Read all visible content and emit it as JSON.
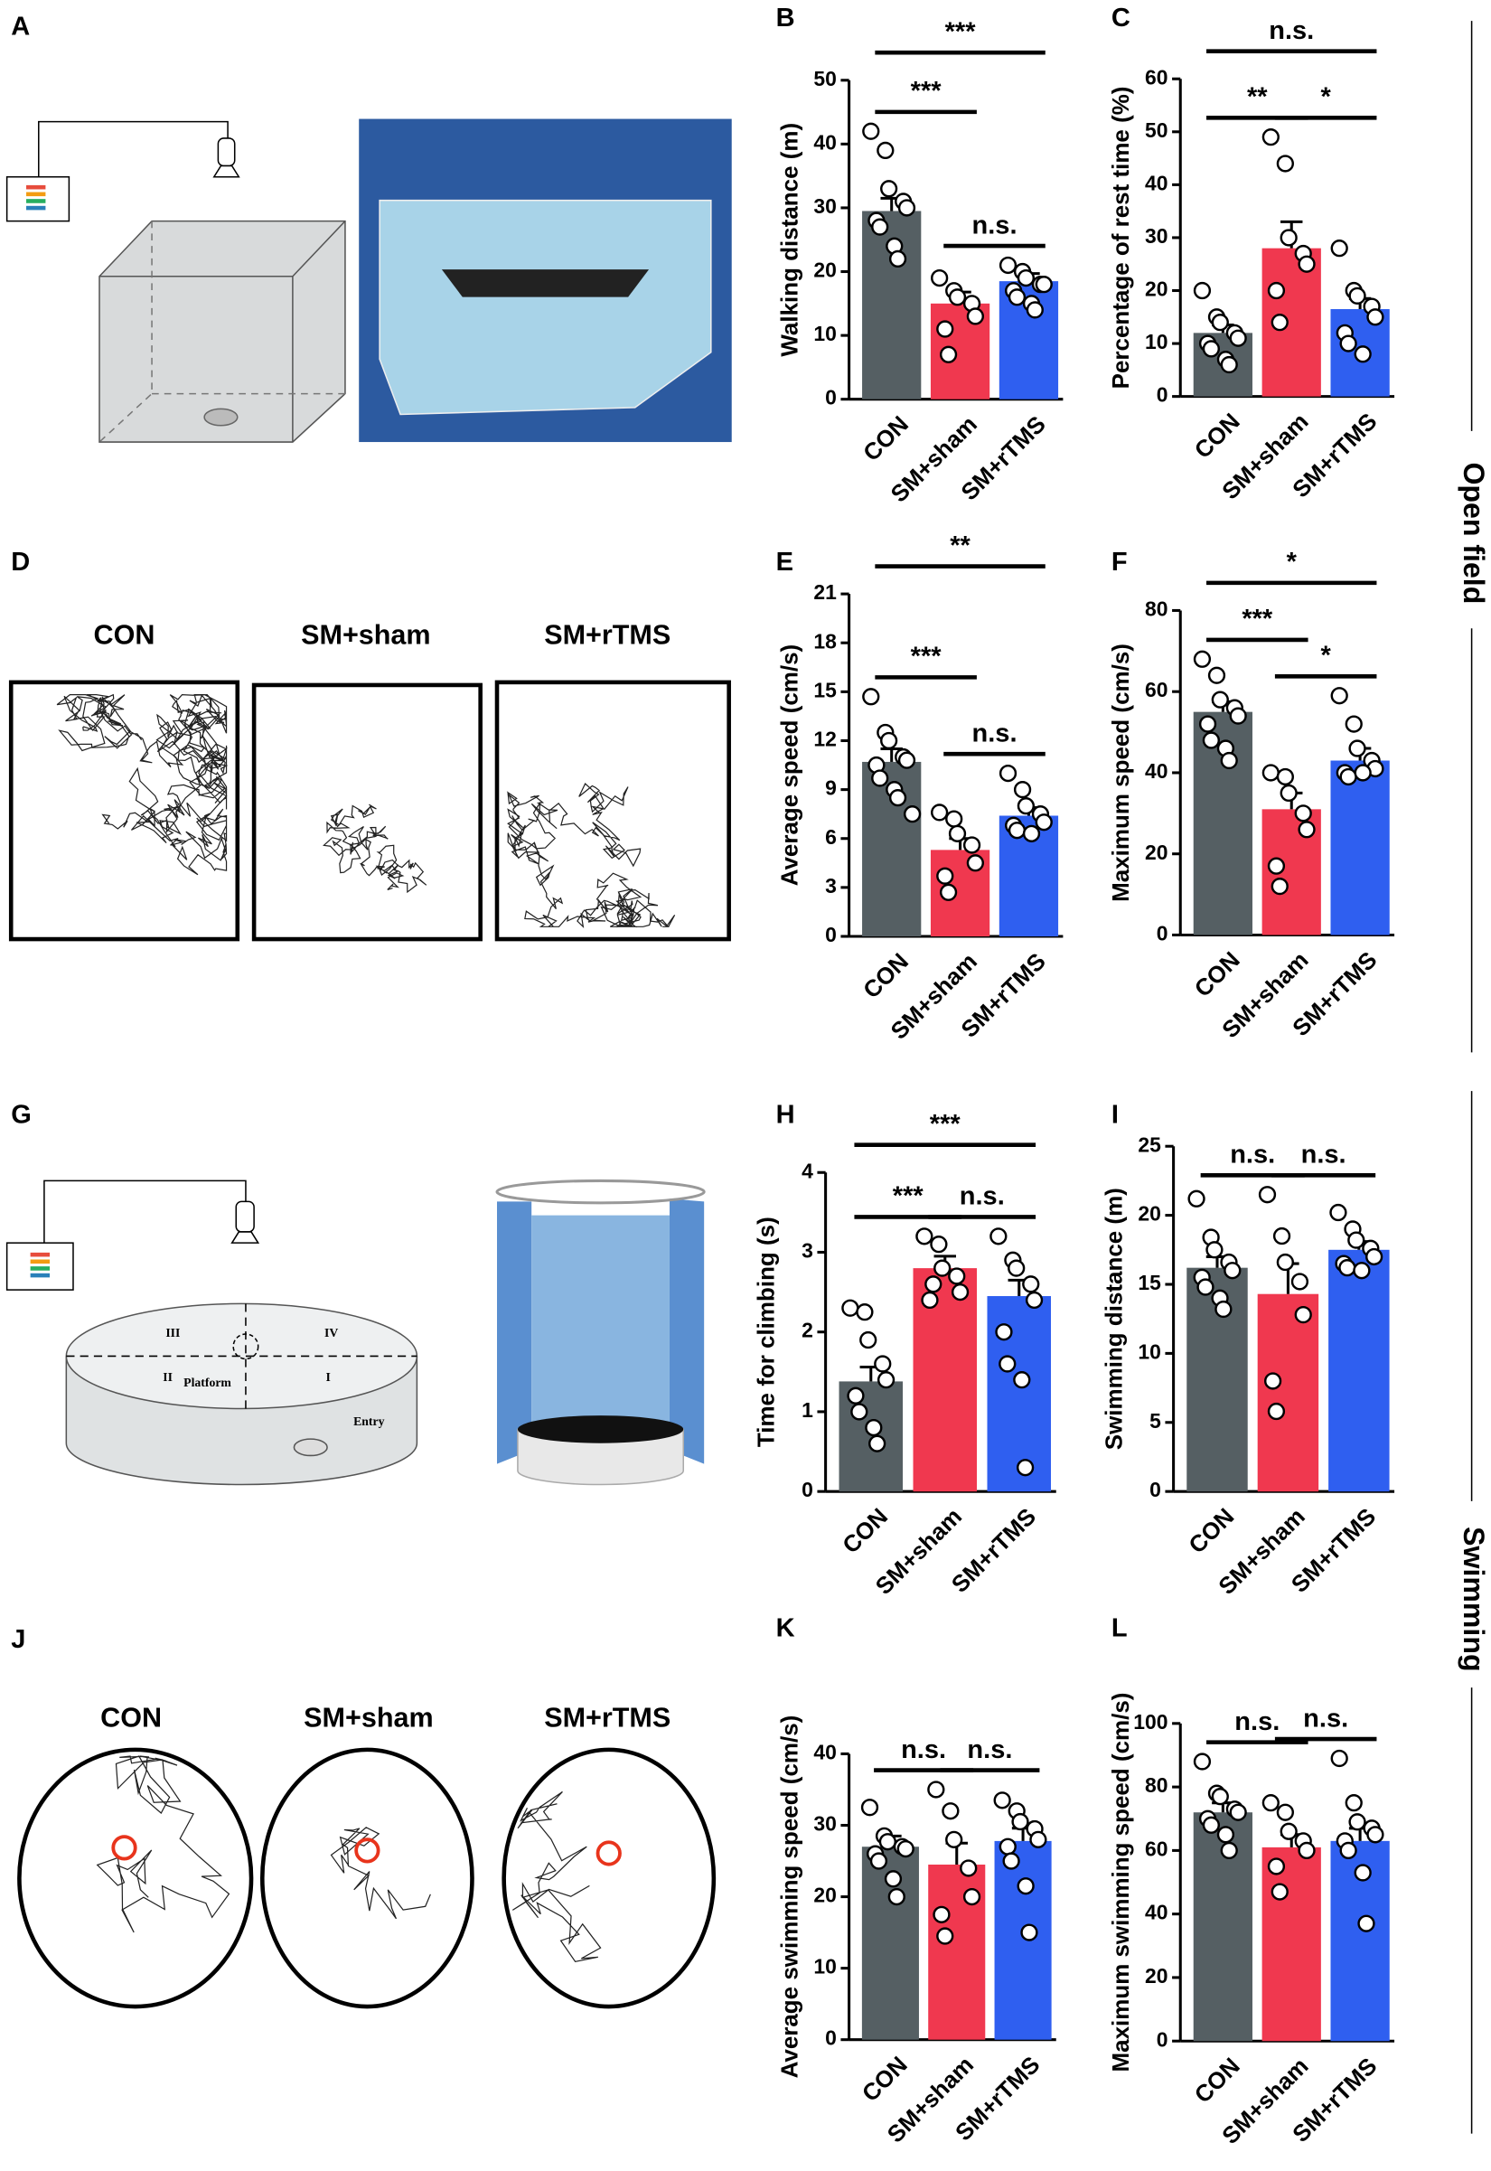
{
  "panels": [
    "A",
    "D",
    "G",
    "J"
  ],
  "side_labels": [
    "Open field",
    "Swimming"
  ],
  "open_field_tracks": [
    "CON",
    "SM+sham",
    "SM+rTMS"
  ],
  "swim_tracks": [
    "CON",
    "SM+sham",
    "SM+rTMS"
  ],
  "maze_labels": [
    "III",
    "IV",
    "II",
    "I",
    "Platform",
    "Entry"
  ],
  "chart_data": [
    {
      "type": "bar",
      "label": "B",
      "ylabel": "Walking distance (m)",
      "categories": [
        "CON",
        "SM+sham",
        "SM+rTMS"
      ],
      "colors": [
        "#555f63",
        "#f0384f",
        "#2f5ff0"
      ],
      "values": [
        29.5,
        15,
        18.5
      ],
      "errors": [
        2,
        1.8,
        1.2
      ],
      "points": [
        [
          42,
          39,
          33,
          31,
          30,
          28,
          27,
          24,
          22
        ],
        [
          19,
          17,
          16,
          15,
          13,
          11,
          7
        ],
        [
          21,
          20,
          19,
          18,
          18,
          17,
          16,
          15,
          14
        ]
      ],
      "ylim": [
        0,
        50
      ],
      "yticks": [
        0,
        10,
        20,
        30,
        40,
        50
      ],
      "annotations": [
        {
          "text": "***",
          "pair": [
            0,
            1
          ]
        },
        {
          "text": "n.s.",
          "pair": [
            1,
            2
          ]
        },
        {
          "text": "***",
          "pair": [
            0,
            2
          ]
        }
      ]
    },
    {
      "type": "bar",
      "label": "C",
      "ylabel": "Percentage of rest time (%)",
      "categories": [
        "CON",
        "SM+sham",
        "SM+rTMS"
      ],
      "colors": [
        "#555f63",
        "#f0384f",
        "#2f5ff0"
      ],
      "values": [
        12,
        28,
        16.5
      ],
      "errors": [
        1.5,
        5,
        2
      ],
      "points": [
        [
          20,
          15,
          14,
          12,
          11,
          10,
          9,
          7,
          6
        ],
        [
          49,
          44,
          30,
          27,
          25,
          20,
          14
        ],
        [
          28,
          20,
          19,
          17,
          15,
          12,
          10,
          8
        ]
      ],
      "ylim": [
        0,
        60
      ],
      "yticks": [
        0,
        10,
        20,
        30,
        40,
        50,
        60
      ],
      "annotations": [
        {
          "text": "**",
          "pair": [
            0,
            1
          ]
        },
        {
          "text": "*",
          "pair": [
            1,
            2
          ]
        },
        {
          "text": "n.s.",
          "pair": [
            0,
            2
          ]
        }
      ]
    },
    {
      "type": "bar",
      "label": "E",
      "ylabel": "Average speed (cm/s)",
      "categories": [
        "CON",
        "SM+sham",
        "SM+rTMS"
      ],
      "colors": [
        "#555f63",
        "#f0384f",
        "#2f5ff0"
      ],
      "values": [
        10.7,
        5.3,
        7.4
      ],
      "errors": [
        0.8,
        0.7,
        0.5
      ],
      "points": [
        [
          14.7,
          12.5,
          12,
          11,
          10.8,
          10.5,
          9.7,
          9,
          8.5,
          7.5
        ],
        [
          7.6,
          7.2,
          6.3,
          5.6,
          4.5,
          3.7,
          2.7
        ],
        [
          10,
          9,
          8,
          7.5,
          7,
          6.8,
          6.5,
          6.3
        ]
      ],
      "ylim": [
        0,
        21
      ],
      "yticks": [
        0,
        3,
        6,
        9,
        12,
        15,
        18,
        21
      ],
      "annotations": [
        {
          "text": "***",
          "pair": [
            0,
            1
          ]
        },
        {
          "text": "n.s.",
          "pair": [
            1,
            2
          ]
        },
        {
          "text": "**",
          "pair": [
            0,
            2
          ]
        }
      ]
    },
    {
      "type": "bar",
      "label": "F",
      "ylabel": "Maximum speed (cm/s)",
      "categories": [
        "CON",
        "SM+sham",
        "SM+rTMS"
      ],
      "colors": [
        "#555f63",
        "#f0384f",
        "#2f5ff0"
      ],
      "values": [
        55,
        31,
        43
      ],
      "errors": [
        2.5,
        4,
        3
      ],
      "points": [
        [
          68,
          64,
          58,
          56,
          54,
          52,
          48,
          46,
          43
        ],
        [
          40,
          39,
          35,
          30,
          26,
          17,
          12
        ],
        [
          59,
          52,
          46,
          43,
          41,
          40,
          39,
          40
        ]
      ],
      "ylim": [
        0,
        80
      ],
      "yticks": [
        0,
        20,
        40,
        60,
        80
      ],
      "annotations": [
        {
          "text": "***",
          "pair": [
            0,
            1
          ]
        },
        {
          "text": "*",
          "pair": [
            1,
            2
          ]
        },
        {
          "text": "*",
          "pair": [
            0,
            2
          ]
        }
      ]
    },
    {
      "type": "bar",
      "label": "H",
      "ylabel": "Time for climbing (s)",
      "categories": [
        "CON",
        "SM+sham",
        "SM+rTMS"
      ],
      "colors": [
        "#555f63",
        "#f0384f",
        "#2f5ff0"
      ],
      "values": [
        1.38,
        2.8,
        2.45
      ],
      "errors": [
        0.18,
        0.15,
        0.2
      ],
      "points": [
        [
          2.3,
          2.25,
          1.9,
          1.6,
          1.4,
          1.2,
          1,
          0.8,
          0.6
        ],
        [
          3.2,
          3.1,
          2.8,
          2.7,
          2.5,
          2.4,
          2.6
        ],
        [
          3.2,
          2.9,
          2.8,
          2.6,
          2.4,
          2,
          1.6,
          1.4,
          0.3
        ]
      ],
      "ylim": [
        0,
        4
      ],
      "yticks": [
        0,
        1,
        2,
        3,
        4
      ],
      "annotations": [
        {
          "text": "***",
          "pair": [
            0,
            1
          ]
        },
        {
          "text": "n.s.",
          "pair": [
            1,
            2
          ]
        },
        {
          "text": "***",
          "pair": [
            0,
            2
          ]
        }
      ]
    },
    {
      "type": "bar",
      "label": "I",
      "ylabel": "Swimming distance (m)",
      "categories": [
        "CON",
        "SM+sham",
        "SM+rTMS"
      ],
      "colors": [
        "#555f63",
        "#f0384f",
        "#2f5ff0"
      ],
      "values": [
        16.2,
        14.3,
        17.5
      ],
      "errors": [
        0.8,
        2.2,
        0.6
      ],
      "points": [
        [
          21.2,
          18.4,
          17.5,
          16.6,
          16,
          15.5,
          14.8,
          14,
          13.2
        ],
        [
          21.5,
          18.5,
          16.6,
          15.2,
          12.8,
          8,
          5.8
        ],
        [
          20.2,
          19,
          18.2,
          17.6,
          17,
          16.5,
          16.2,
          16
        ]
      ],
      "ylim": [
        0,
        25
      ],
      "yticks": [
        0,
        5,
        10,
        15,
        20,
        25
      ],
      "annotations": [
        {
          "text": "n.s.",
          "pair": [
            0,
            1
          ]
        },
        {
          "text": "n.s.",
          "pair": [
            1,
            2
          ]
        }
      ]
    },
    {
      "type": "bar",
      "label": "K",
      "ylabel": "Average swimming speed (cm/s)",
      "categories": [
        "CON",
        "SM+sham",
        "SM+rTMS"
      ],
      "colors": [
        "#555f63",
        "#f0384f",
        "#2f5ff0"
      ],
      "values": [
        27,
        24.5,
        27.8
      ],
      "errors": [
        1.5,
        3,
        1.8
      ],
      "points": [
        [
          32.5,
          28.5,
          27.7,
          27,
          26.7,
          26,
          25,
          22.5,
          20
        ],
        [
          35,
          32,
          28,
          24,
          20,
          17.5,
          14.5
        ],
        [
          33.5,
          32,
          30.5,
          29.5,
          28,
          27,
          25,
          21.5,
          15
        ]
      ],
      "ylim": [
        0,
        40
      ],
      "yticks": [
        0,
        10,
        20,
        30,
        40
      ],
      "annotations": [
        {
          "text": "n.s.",
          "pair": [
            0,
            1
          ]
        },
        {
          "text": "n.s.",
          "pair": [
            1,
            2
          ]
        }
      ]
    },
    {
      "type": "bar",
      "label": "L",
      "ylabel": "Maximum swimming speed (cm/s)",
      "categories": [
        "CON",
        "SM+sham",
        "SM+rTMS"
      ],
      "colors": [
        "#555f63",
        "#f0384f",
        "#2f5ff0"
      ],
      "values": [
        72,
        61,
        63
      ],
      "errors": [
        3,
        4,
        4
      ],
      "points": [
        [
          88,
          78,
          77,
          73,
          72,
          70,
          68,
          65,
          60
        ],
        [
          75,
          72,
          66,
          63,
          60,
          55,
          47
        ],
        [
          89,
          75,
          69,
          67,
          65,
          63,
          60,
          53,
          37
        ]
      ],
      "ylim": [
        0,
        100
      ],
      "yticks": [
        0,
        20,
        40,
        60,
        80,
        100
      ],
      "annotations": [
        {
          "text": "n.s.",
          "pair": [
            0,
            1
          ]
        },
        {
          "text": "n.s.",
          "pair": [
            1,
            2
          ]
        }
      ]
    }
  ]
}
